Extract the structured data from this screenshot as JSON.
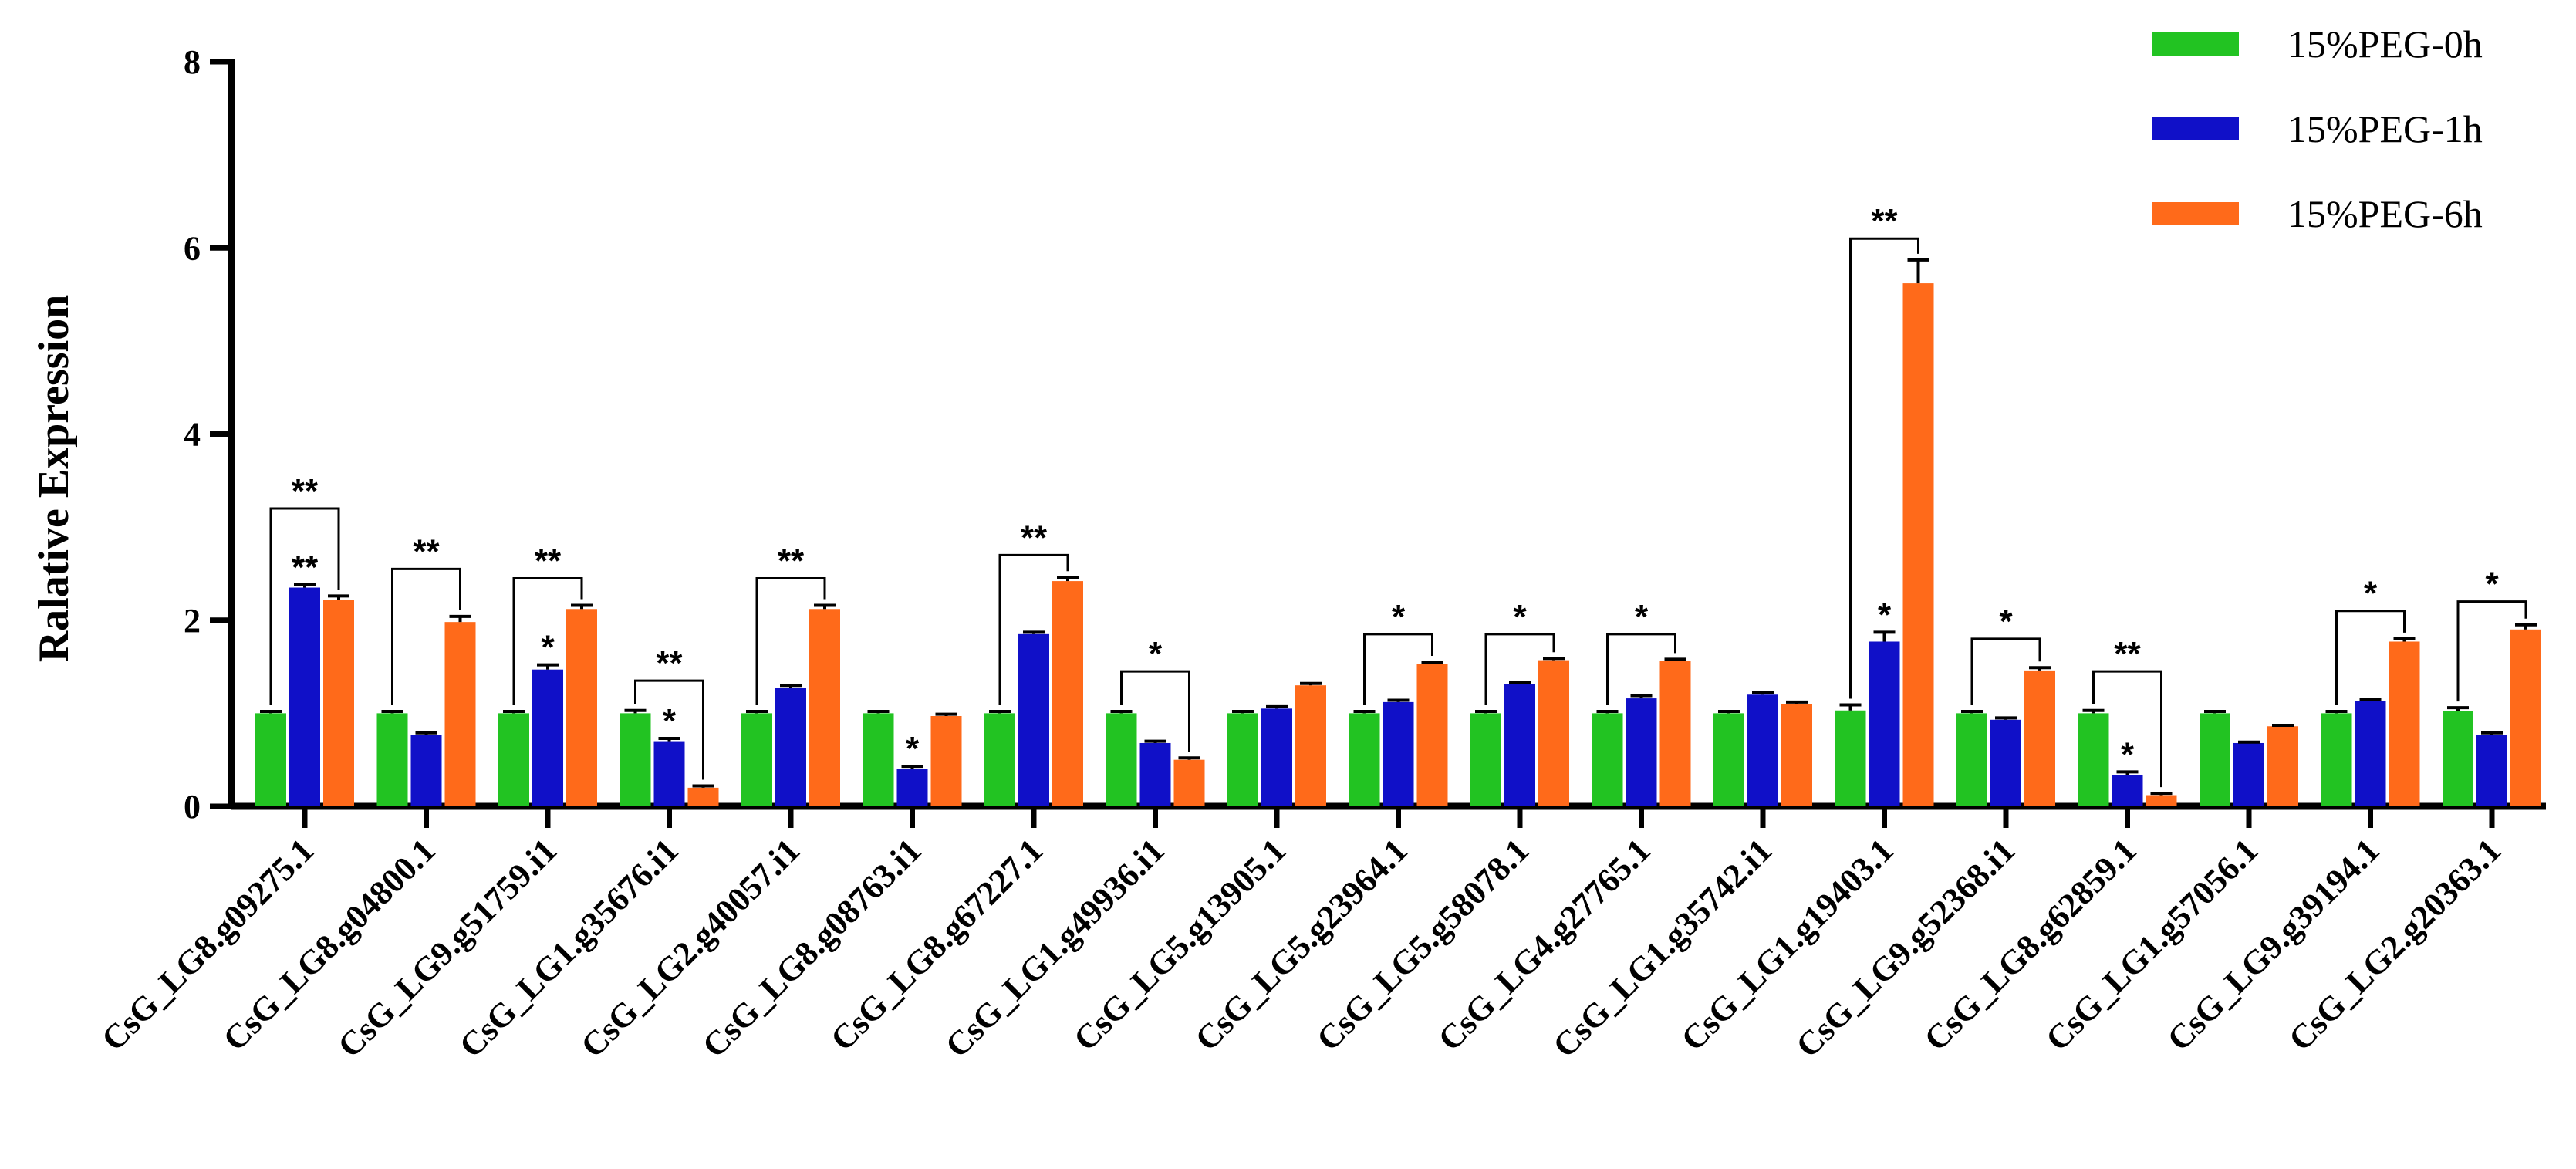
{
  "chart_data": {
    "type": "bar",
    "title": "",
    "xlabel": "",
    "ylabel": "Ralative Expression",
    "ylim": [
      0,
      8
    ],
    "yticks": [
      "0",
      "2",
      "4",
      "6",
      "8"
    ],
    "grid": false,
    "legend_position": "top-right",
    "categories": [
      "CsG_LG8.g09275.1",
      "CsG_LG8.g04800.1",
      "CsG_LG9.g51759.i1",
      "CsG_LG1.g35676.i1",
      "CsG_LG2.g40057.i1",
      "CsG_LG8.g08763.i1",
      "CsG_LG8.g67227.1",
      "CsG_LG1.g49936.i1",
      "CsG_LG5.g13905.1",
      "CsG_LG5.g23964.1",
      "CsG_LG5.g58078.1",
      "CsG_LG4.g27765.1",
      "CsG_LG1.g35742.i1",
      "CsG_LG1.g19403.1",
      "CsG_LG9.g52368.i1",
      "CsG_LG8.g62859.1",
      "CsG_LG1.g57056.1",
      "CsG_LG9.g39194.1",
      "CsG_LG2.g20363.1"
    ],
    "series": [
      {
        "name": "15%PEG-0h",
        "color": "#22c322",
        "values": [
          1.0,
          1.0,
          1.0,
          1.0,
          1.0,
          1.0,
          1.0,
          1.0,
          1.0,
          1.0,
          1.0,
          1.0,
          1.0,
          1.03,
          1.0,
          1.0,
          1.0,
          1.0,
          1.02
        ],
        "errors": [
          0.02,
          0.02,
          0.02,
          0.03,
          0.02,
          0.02,
          0.02,
          0.02,
          0.02,
          0.02,
          0.02,
          0.02,
          0.02,
          0.06,
          0.02,
          0.03,
          0.02,
          0.02,
          0.04
        ]
      },
      {
        "name": "15%PEG-1h",
        "color": "#1010c8",
        "values": [
          2.35,
          0.77,
          1.47,
          0.7,
          1.27,
          0.4,
          1.85,
          0.68,
          1.05,
          1.12,
          1.31,
          1.16,
          1.2,
          1.77,
          0.93,
          0.34,
          0.68,
          1.13,
          0.77
        ],
        "errors": [
          0.03,
          0.02,
          0.05,
          0.03,
          0.03,
          0.03,
          0.02,
          0.02,
          0.02,
          0.02,
          0.02,
          0.03,
          0.02,
          0.1,
          0.02,
          0.03,
          0.01,
          0.02,
          0.02
        ]
      },
      {
        "name": "15%PEG-6h",
        "color": "#ff6a1a",
        "values": [
          2.22,
          1.98,
          2.12,
          0.2,
          2.12,
          0.97,
          2.42,
          0.5,
          1.3,
          1.53,
          1.57,
          1.56,
          1.1,
          5.62,
          1.46,
          0.12,
          0.86,
          1.77,
          1.9
        ],
        "errors": [
          0.04,
          0.06,
          0.04,
          0.02,
          0.04,
          0.02,
          0.04,
          0.02,
          0.02,
          0.02,
          0.02,
          0.02,
          0.02,
          0.25,
          0.03,
          0.02,
          0.01,
          0.03,
          0.05
        ]
      }
    ],
    "significance": [
      {
        "category": 0,
        "bracket_label": "**",
        "bar_label": "**",
        "bracket_y": 3.2
      },
      {
        "category": 1,
        "bracket_label": "**",
        "bar_label": "",
        "bracket_y": 2.55
      },
      {
        "category": 2,
        "bracket_label": "**",
        "bar_label": "*",
        "bracket_y": 2.45
      },
      {
        "category": 3,
        "bracket_label": "**",
        "bar_label": "*",
        "bracket_y": 1.35
      },
      {
        "category": 4,
        "bracket_label": "**",
        "bar_label": "",
        "bracket_y": 2.45
      },
      {
        "category": 5,
        "bracket_label": "",
        "bar_label": "*",
        "bracket_y": null
      },
      {
        "category": 6,
        "bracket_label": "**",
        "bar_label": "",
        "bracket_y": 2.7
      },
      {
        "category": 7,
        "bracket_label": "*",
        "bar_label": "",
        "bracket_y": 1.45
      },
      {
        "category": 9,
        "bracket_label": "*",
        "bar_label": "",
        "bracket_y": 1.85
      },
      {
        "category": 10,
        "bracket_label": "*",
        "bar_label": "",
        "bracket_y": 1.85
      },
      {
        "category": 11,
        "bracket_label": "*",
        "bar_label": "",
        "bracket_y": 1.85
      },
      {
        "category": 13,
        "bracket_label": "**",
        "bar_label": "*",
        "bracket_y": 6.1
      },
      {
        "category": 14,
        "bracket_label": "*",
        "bar_label": "",
        "bracket_y": 1.8
      },
      {
        "category": 15,
        "bracket_label": "**",
        "bar_label": "*",
        "bracket_y": 1.45
      },
      {
        "category": 17,
        "bracket_label": "*",
        "bar_label": "",
        "bracket_y": 2.1
      },
      {
        "category": 18,
        "bracket_label": "*",
        "bar_label": "",
        "bracket_y": 2.2
      }
    ]
  }
}
